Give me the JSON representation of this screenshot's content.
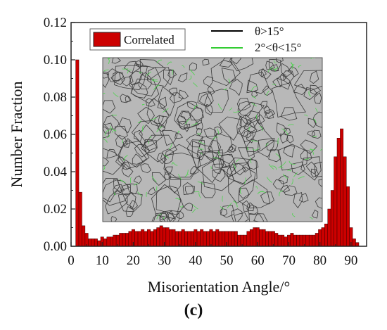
{
  "chart_data": {
    "type": "bar",
    "xlabel": "Misorientation Angle/°",
    "ylabel": "Number Fraction",
    "panel_label": "(c)",
    "xlim": [
      0,
      95
    ],
    "ylim": [
      0,
      0.12
    ],
    "x_ticks": [
      "0",
      "10",
      "20",
      "30",
      "40",
      "50",
      "60",
      "70",
      "80",
      "90"
    ],
    "y_ticks": [
      "0.00",
      "0.02",
      "0.04",
      "0.06",
      "0.08",
      "0.10",
      "0.12"
    ],
    "bar_color": "#cc0000",
    "series": [
      {
        "name": "Correlated",
        "bin_width": 1,
        "x": [
          2,
          3,
          4,
          5,
          6,
          7,
          8,
          9,
          10,
          11,
          12,
          13,
          14,
          15,
          16,
          17,
          18,
          19,
          20,
          21,
          22,
          23,
          24,
          25,
          26,
          27,
          28,
          29,
          30,
          31,
          32,
          33,
          34,
          35,
          36,
          37,
          38,
          39,
          40,
          41,
          42,
          43,
          44,
          45,
          46,
          47,
          48,
          49,
          50,
          51,
          52,
          53,
          54,
          55,
          56,
          57,
          58,
          59,
          60,
          61,
          62,
          63,
          64,
          65,
          66,
          67,
          68,
          69,
          70,
          71,
          72,
          73,
          74,
          75,
          76,
          77,
          78,
          79,
          80,
          81,
          82,
          83,
          84,
          85,
          86,
          87,
          88,
          89,
          90,
          91,
          92
        ],
        "values": [
          0.1,
          0.029,
          0.011,
          0.007,
          0.004,
          0.004,
          0.004,
          0.003,
          0.005,
          0.004,
          0.005,
          0.005,
          0.006,
          0.006,
          0.007,
          0.007,
          0.007,
          0.008,
          0.009,
          0.008,
          0.008,
          0.009,
          0.008,
          0.009,
          0.008,
          0.009,
          0.01,
          0.011,
          0.01,
          0.01,
          0.009,
          0.009,
          0.008,
          0.008,
          0.009,
          0.008,
          0.008,
          0.008,
          0.009,
          0.008,
          0.009,
          0.008,
          0.008,
          0.009,
          0.008,
          0.009,
          0.008,
          0.008,
          0.008,
          0.008,
          0.008,
          0.008,
          0.006,
          0.006,
          0.006,
          0.008,
          0.009,
          0.01,
          0.01,
          0.009,
          0.009,
          0.008,
          0.008,
          0.008,
          0.007,
          0.006,
          0.006,
          0.005,
          0.006,
          0.007,
          0.006,
          0.006,
          0.006,
          0.006,
          0.006,
          0.006,
          0.006,
          0.007,
          0.009,
          0.01,
          0.012,
          0.02,
          0.03,
          0.048,
          0.058,
          0.063,
          0.048,
          0.032,
          0.01,
          0.004,
          0.002
        ]
      }
    ],
    "legend": {
      "bar_label": "Correlated",
      "placement": "top-left",
      "line_items": [
        {
          "label": "θ>15°",
          "color": "#000000"
        },
        {
          "label": "2°<θ<15°",
          "color": "#33cc33"
        }
      ]
    },
    "inset": {
      "description_icon": "ebsd-grain-map-image",
      "background": "#b8b8b8",
      "high_angle_color": "#3a3a3a",
      "low_angle_color": "#4cd44c"
    }
  }
}
